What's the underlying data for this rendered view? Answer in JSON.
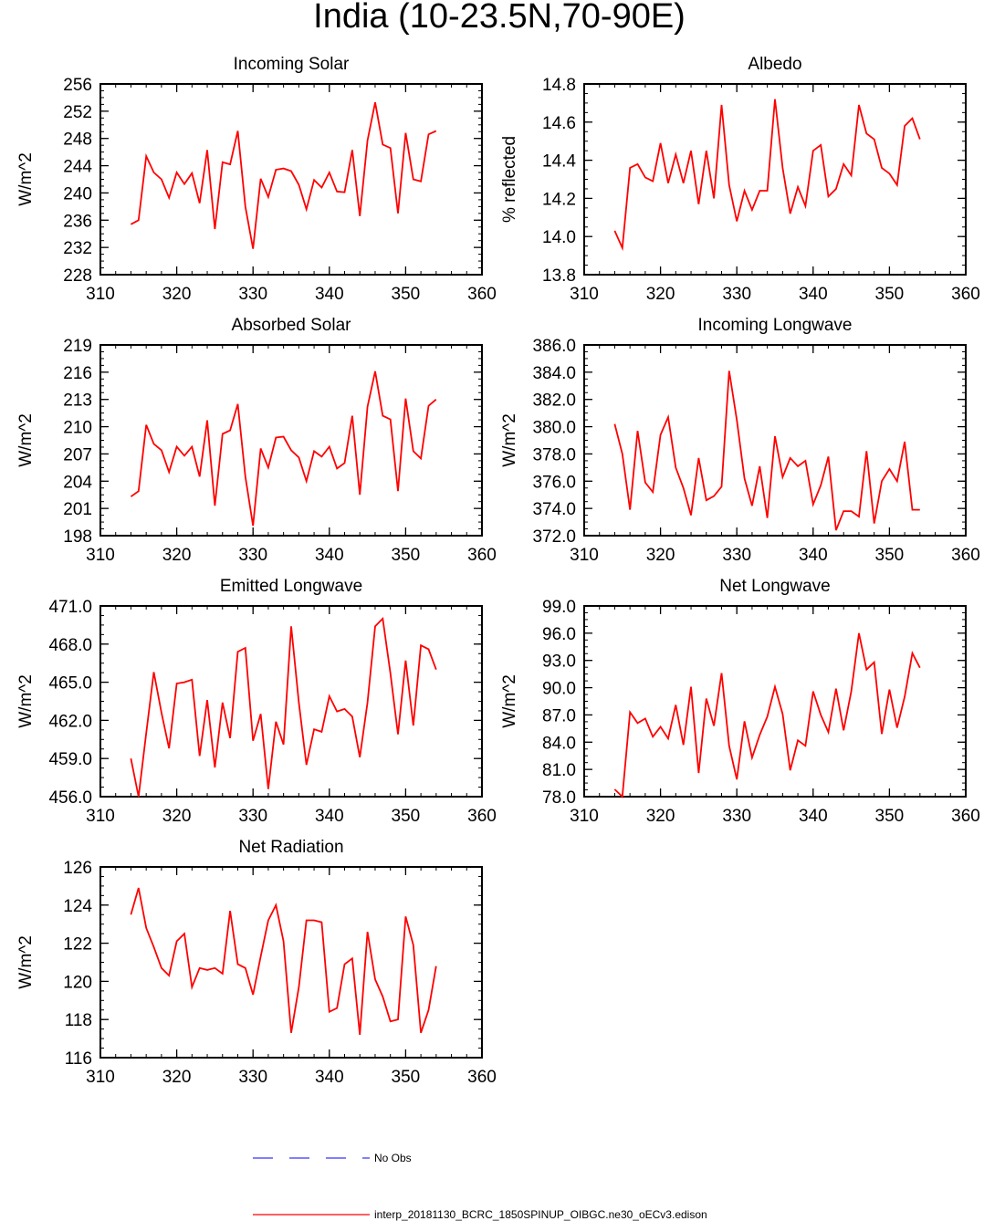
{
  "figure": {
    "title": "India (10-23.5N,70-90E)",
    "series_color": "#ff0000",
    "obs_color": "#0000ff"
  },
  "legend": {
    "entries": [
      {
        "label": "No Obs",
        "style": "dashed",
        "color": "#0000ff"
      },
      {
        "label": "interp_20181130_BCRC_1850SPINUP_OIBGC.ne30_oECv3.edison",
        "style": "solid",
        "color": "#ff0000"
      }
    ]
  },
  "chart_data": [
    {
      "type": "line",
      "title": "Incoming Solar",
      "ylabel": "W/m^2",
      "xlim": [
        310,
        360
      ],
      "ylim": [
        228,
        256
      ],
      "xticks": [
        "310",
        "320",
        "330",
        "340",
        "350",
        "360"
      ],
      "yticks": [
        "228",
        "232",
        "236",
        "240",
        "244",
        "248",
        "252",
        "256"
      ],
      "grid": false,
      "x_start": 314,
      "series": [
        {
          "values": [
            235.4,
            236.0,
            245.4,
            243.0,
            242.0,
            239.3,
            243.0,
            241.3,
            242.9,
            238.5,
            246.3,
            234.7,
            244.5,
            244.2,
            249.1,
            238.0,
            231.8,
            242.1,
            239.4,
            243.4,
            243.6,
            243.2,
            241.2,
            237.6,
            241.9,
            240.8,
            243.0,
            240.2,
            240.1,
            246.3,
            236.6,
            247.7,
            253.3,
            247.1,
            246.6,
            237.0,
            248.8,
            242.0,
            241.7,
            248.6,
            249.1
          ]
        }
      ]
    },
    {
      "type": "line",
      "title": "Albedo",
      "ylabel": "% reflected",
      "xlim": [
        310,
        360
      ],
      "ylim": [
        13.8,
        14.8
      ],
      "xticks": [
        "310",
        "320",
        "330",
        "340",
        "350",
        "360"
      ],
      "yticks": [
        "13.8",
        "14.0",
        "14.2",
        "14.4",
        "14.6",
        "14.8"
      ],
      "grid": false,
      "x_start": 314,
      "series": [
        {
          "values": [
            14.03,
            13.94,
            14.36,
            14.38,
            14.31,
            14.29,
            14.49,
            14.28,
            14.43,
            14.28,
            14.45,
            14.17,
            14.45,
            14.2,
            14.69,
            14.27,
            14.08,
            14.24,
            14.14,
            14.24,
            14.24,
            14.72,
            14.36,
            14.12,
            14.26,
            14.16,
            14.45,
            14.48,
            14.21,
            14.25,
            14.38,
            14.32,
            14.69,
            14.54,
            14.51,
            14.36,
            14.33,
            14.27,
            14.58,
            14.62,
            14.51
          ]
        }
      ]
    },
    {
      "type": "line",
      "title": "Absorbed Solar",
      "ylabel": "W/m^2",
      "xlim": [
        310,
        360
      ],
      "ylim": [
        198,
        219
      ],
      "xticks": [
        "310",
        "320",
        "330",
        "340",
        "350",
        "360"
      ],
      "yticks": [
        "198",
        "201",
        "204",
        "207",
        "210",
        "213",
        "216",
        "219"
      ],
      "grid": false,
      "x_start": 314,
      "series": [
        {
          "values": [
            202.3,
            202.9,
            210.2,
            208.1,
            207.4,
            205.0,
            207.8,
            206.8,
            207.8,
            204.5,
            210.7,
            201.3,
            209.2,
            209.6,
            212.5,
            204.5,
            199.1,
            207.6,
            205.5,
            208.8,
            208.9,
            207.4,
            206.6,
            204.0,
            207.3,
            206.7,
            207.8,
            205.4,
            206.0,
            211.2,
            202.5,
            212.2,
            216.1,
            211.2,
            210.8,
            202.9,
            213.1,
            207.3,
            206.5,
            212.3,
            213.0
          ]
        }
      ]
    },
    {
      "type": "line",
      "title": "Incoming Longwave",
      "ylabel": "W/m^2",
      "xlim": [
        310,
        360
      ],
      "ylim": [
        372.0,
        386.0
      ],
      "xticks": [
        "310",
        "320",
        "330",
        "340",
        "350",
        "360"
      ],
      "yticks": [
        "372.0",
        "374.0",
        "376.0",
        "378.0",
        "380.0",
        "382.0",
        "384.0",
        "386.0"
      ],
      "grid": false,
      "x_start": 314,
      "series": [
        {
          "values": [
            380.2,
            378.0,
            373.9,
            379.7,
            375.9,
            375.2,
            379.4,
            380.7,
            377.0,
            375.5,
            373.5,
            377.7,
            374.6,
            374.9,
            375.6,
            384.1,
            380.5,
            376.2,
            374.2,
            377.1,
            373.3,
            379.3,
            376.3,
            377.7,
            377.1,
            377.5,
            374.3,
            375.7,
            377.8,
            372.4,
            373.8,
            373.8,
            373.4,
            378.2,
            372.9,
            376.0,
            376.9,
            376.0,
            378.9,
            373.9,
            373.9
          ]
        }
      ]
    },
    {
      "type": "line",
      "title": "Emitted Longwave",
      "ylabel": "W/m^2",
      "xlim": [
        310,
        360
      ],
      "ylim": [
        456.0,
        471.0
      ],
      "xticks": [
        "310",
        "320",
        "330",
        "340",
        "350",
        "360"
      ],
      "yticks": [
        "456.0",
        "459.0",
        "462.0",
        "465.0",
        "468.0",
        "471.0"
      ],
      "grid": false,
      "x_start": 314,
      "series": [
        {
          "values": [
            459.0,
            456.0,
            461.0,
            465.8,
            462.6,
            459.8,
            464.9,
            465.0,
            465.2,
            459.2,
            463.6,
            458.3,
            463.4,
            460.6,
            467.4,
            467.7,
            460.4,
            462.5,
            456.6,
            461.9,
            460.1,
            469.4,
            463.4,
            458.5,
            461.3,
            461.1,
            463.9,
            462.7,
            462.9,
            462.3,
            459.1,
            463.4,
            469.4,
            470.0,
            465.7,
            460.9,
            466.7,
            461.6,
            467.9,
            467.6,
            466.0
          ]
        }
      ]
    },
    {
      "type": "line",
      "title": "Net Longwave",
      "ylabel": "W/m^2",
      "xlim": [
        310,
        360
      ],
      "ylim": [
        78.0,
        99.0
      ],
      "xticks": [
        "310",
        "320",
        "330",
        "340",
        "350",
        "360"
      ],
      "yticks": [
        "78.0",
        "81.0",
        "84.0",
        "87.0",
        "90.0",
        "93.0",
        "96.0",
        "99.0"
      ],
      "grid": false,
      "x_start": 314,
      "series": [
        {
          "values": [
            78.8,
            78.0,
            87.3,
            86.1,
            86.6,
            84.6,
            85.7,
            84.4,
            88.1,
            83.7,
            90.1,
            80.6,
            88.8,
            85.8,
            91.6,
            83.6,
            79.9,
            86.3,
            82.3,
            84.8,
            86.8,
            90.1,
            87.1,
            80.9,
            84.2,
            83.6,
            89.6,
            87.0,
            85.1,
            89.9,
            85.3,
            89.6,
            96.0,
            92.0,
            92.8,
            84.9,
            89.8,
            85.6,
            89.0,
            93.8,
            92.2
          ]
        }
      ]
    },
    {
      "type": "line",
      "title": "Net Radiation",
      "ylabel": "W/m^2",
      "xlim": [
        310,
        360
      ],
      "ylim": [
        116,
        126
      ],
      "xticks": [
        "310",
        "320",
        "330",
        "340",
        "350",
        "360"
      ],
      "yticks": [
        "116",
        "118",
        "120",
        "122",
        "124",
        "126"
      ],
      "grid": false,
      "x_start": 314,
      "series": [
        {
          "values": [
            123.5,
            124.9,
            122.8,
            121.8,
            120.7,
            120.3,
            122.1,
            122.5,
            119.7,
            120.7,
            120.6,
            120.7,
            120.4,
            123.7,
            120.9,
            120.7,
            119.3,
            121.3,
            123.2,
            124.0,
            122.1,
            117.3,
            119.7,
            123.2,
            123.2,
            123.1,
            118.4,
            118.6,
            120.9,
            121.2,
            117.2,
            122.6,
            120.1,
            119.2,
            117.9,
            118.0,
            123.4,
            121.9,
            117.3,
            118.5,
            120.8
          ]
        }
      ]
    }
  ]
}
